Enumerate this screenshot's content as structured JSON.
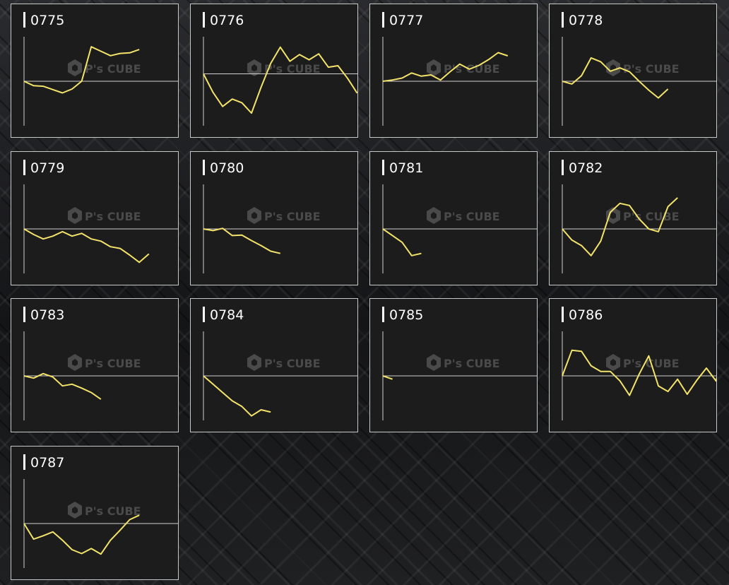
{
  "theme": {
    "line_color": "#f3e36a",
    "panel_bg": "#1c1c1c",
    "border_color": "#c8c8c8"
  },
  "watermark": {
    "brand": "P's CUBE",
    "icon": "cube-logo-icon"
  },
  "chart_data": [
    {
      "type": "line",
      "title": "0775",
      "values": [
        0,
        -8,
        -9,
        -15,
        -21,
        -14,
        0,
        62,
        54,
        46,
        50,
        51,
        57
      ],
      "ylim": [
        -80,
        80
      ]
    },
    {
      "type": "line",
      "title": "0776",
      "values": [
        0,
        -25,
        -44,
        -34,
        -39,
        -53,
        -18,
        14,
        36,
        17,
        26,
        19,
        27,
        9,
        11,
        -6,
        -26
      ],
      "ylim": [
        -70,
        50
      ]
    },
    {
      "type": "line",
      "title": "0777",
      "values": [
        0,
        2,
        5,
        13,
        8,
        10,
        2,
        15,
        27,
        19,
        25,
        34,
        45,
        40
      ],
      "ylim": [
        -70,
        70
      ]
    },
    {
      "type": "line",
      "title": "0778",
      "values": [
        0,
        -5,
        10,
        42,
        35,
        18,
        24,
        17,
        0,
        -16,
        -30,
        -14
      ],
      "ylim": [
        -80,
        80
      ]
    },
    {
      "type": "line",
      "title": "0779",
      "values": [
        0,
        -10,
        -18,
        -13,
        -5,
        -13,
        -8,
        -18,
        -22,
        -32,
        -35,
        -47,
        -60,
        -45
      ],
      "ylim": [
        -80,
        80
      ]
    },
    {
      "type": "line",
      "title": "0780",
      "values": [
        0,
        -3,
        1,
        -12,
        -11,
        -21,
        -30,
        -40,
        -44
      ],
      "ylim": [
        -80,
        80
      ]
    },
    {
      "type": "line",
      "title": "0781",
      "values": [
        0,
        -12,
        -24,
        -48,
        -44
      ],
      "ylim": [
        -80,
        80
      ]
    },
    {
      "type": "line",
      "title": "0782",
      "values": [
        0,
        -20,
        -30,
        -48,
        -22,
        30,
        46,
        42,
        18,
        0,
        -5,
        40,
        56
      ],
      "ylim": [
        -80,
        80
      ]
    },
    {
      "type": "line",
      "title": "0783",
      "values": [
        0,
        -4,
        4,
        -2,
        -18,
        -15,
        -22,
        -30,
        -42
      ],
      "ylim": [
        -80,
        80
      ]
    },
    {
      "type": "line",
      "title": "0784",
      "values": [
        0,
        -15,
        -30,
        -45,
        -55,
        -72,
        -61,
        -65
      ],
      "ylim": [
        -80,
        80
      ]
    },
    {
      "type": "line",
      "title": "0785",
      "values": [
        0,
        -6
      ],
      "ylim": [
        -80,
        80
      ]
    },
    {
      "type": "line",
      "title": "0786",
      "values": [
        0,
        46,
        44,
        18,
        8,
        8,
        -9,
        -35,
        3,
        36,
        -18,
        -28,
        -6,
        -33,
        -8,
        14,
        -9,
        55
      ],
      "ylim": [
        -80,
        80
      ]
    },
    {
      "type": "line",
      "title": "0787",
      "values": [
        0,
        -28,
        -22,
        -15,
        -30,
        -47,
        -54,
        -45,
        -55,
        -30,
        -12,
        7,
        15
      ],
      "ylim": [
        -80,
        80
      ]
    }
  ]
}
